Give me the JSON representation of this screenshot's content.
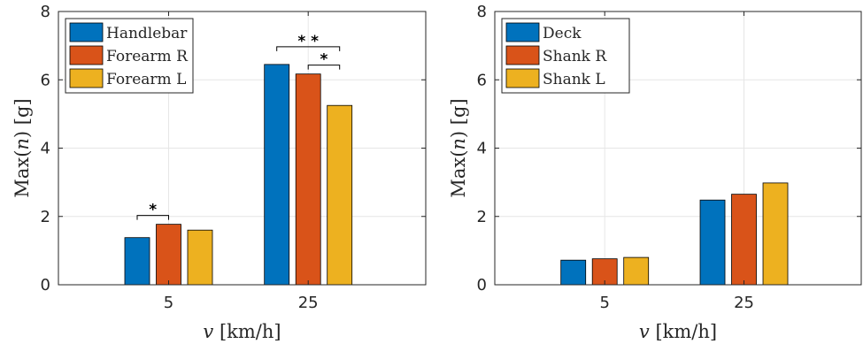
{
  "chart_data": [
    {
      "type": "bar",
      "xlabel_var": "v",
      "xlabel_unit": "[km/h]",
      "ylabel_prefix": "Max(",
      "ylabel_var": "n",
      "ylabel_suffix": ") [g]",
      "categories": [
        "5",
        "25"
      ],
      "ylim": [
        0,
        8
      ],
      "yticks": [
        "0",
        "2",
        "4",
        "6",
        "8"
      ],
      "grid": true,
      "legend_position": "top-left",
      "series": [
        {
          "name": "Handlebar",
          "color": "#0072BD",
          "values": [
            1.38,
            6.45
          ]
        },
        {
          "name": "Forearm R",
          "color": "#D95319",
          "values": [
            1.77,
            6.17
          ]
        },
        {
          "name": "Forearm L",
          "color": "#EDB120",
          "values": [
            1.6,
            5.25
          ]
        }
      ],
      "significance": [
        {
          "category": 0,
          "from_series": 0,
          "to_series": 1,
          "label": "*"
        },
        {
          "category": 1,
          "from_series": 0,
          "to_series": 2,
          "label": "* *"
        },
        {
          "category": 1,
          "from_series": 1,
          "to_series": 2,
          "label": "*"
        }
      ]
    },
    {
      "type": "bar",
      "xlabel_var": "v",
      "xlabel_unit": "[km/h]",
      "ylabel_prefix": "Max(",
      "ylabel_var": "n",
      "ylabel_suffix": ") [g]",
      "categories": [
        "5",
        "25"
      ],
      "ylim": [
        0,
        8
      ],
      "yticks": [
        "0",
        "2",
        "4",
        "6",
        "8"
      ],
      "grid": true,
      "legend_position": "top-left",
      "series": [
        {
          "name": "Deck",
          "color": "#0072BD",
          "values": [
            0.72,
            2.48
          ]
        },
        {
          "name": "Shank R",
          "color": "#D95319",
          "values": [
            0.76,
            2.65
          ]
        },
        {
          "name": "Shank L",
          "color": "#EDB120",
          "values": [
            0.8,
            2.98
          ]
        }
      ],
      "significance": []
    }
  ]
}
